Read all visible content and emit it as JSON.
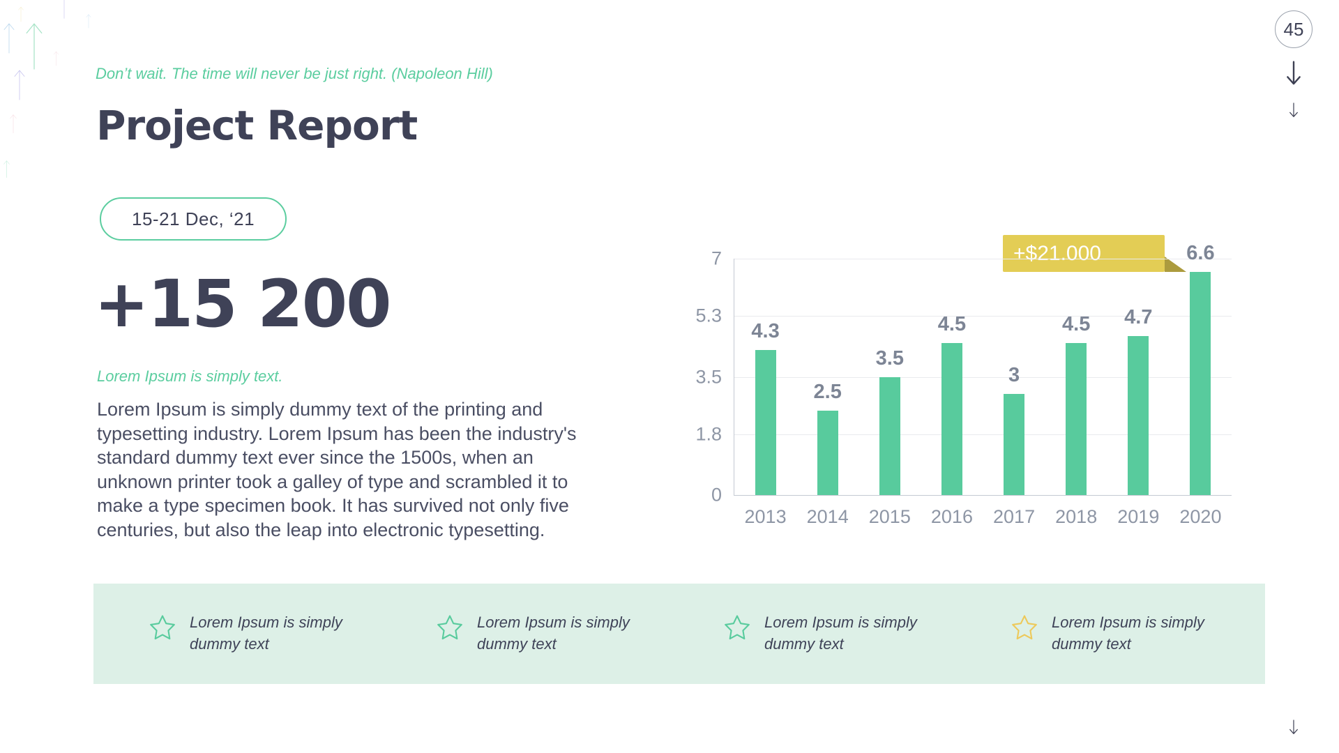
{
  "page": {
    "quote": "Don’t wait. The time will never be just right. (Napoleon Hill)",
    "title": "Project Report",
    "date_badge": "15-21 Dec, ‘21",
    "metric": "+15 200",
    "subtitle": "Lorem Ipsum is simply text.",
    "paragraph": "Lorem Ipsum is simply dummy text of the printing and typesetting industry. Lorem Ipsum has been the industry's standard dummy text ever since the 1500s, when an unknown printer took a galley of type and scrambled it to make a type specimen book. It has survived not only five centuries, but also the leap into electronic typesetting.",
    "page_number": "45"
  },
  "chart_data": {
    "type": "bar",
    "categories": [
      "2013",
      "2014",
      "2015",
      "2016",
      "2017",
      "2018",
      "2019",
      "2020"
    ],
    "values": [
      4.3,
      2.5,
      3.5,
      4.5,
      3,
      4.5,
      4.7,
      6.6
    ],
    "title": "",
    "xlabel": "",
    "ylabel": "",
    "ylim": [
      0,
      7
    ],
    "y_ticks": [
      {
        "value": 0,
        "label": "0"
      },
      {
        "value": 1.8,
        "label": "1.8"
      },
      {
        "value": 3.5,
        "label": "3.5"
      },
      {
        "value": 5.3,
        "label": "5.3"
      },
      {
        "value": 7,
        "label": "7"
      }
    ],
    "grid": true,
    "legend": false,
    "bar_color": "#58cb9d",
    "tooltip": {
      "label": "+$21.000",
      "target_category": "2020",
      "color": "#e3cd55",
      "pointer_color": "#ac9b3e"
    }
  },
  "features": {
    "items": [
      {
        "text": "Lorem Ipsum is simply dummy text",
        "icon": "star-outline-icon",
        "star_color": "#58cb9d"
      },
      {
        "text": "Lorem Ipsum is simply dummy text",
        "icon": "star-outline-icon",
        "star_color": "#58cb9d"
      },
      {
        "text": "Lorem Ipsum is simply dummy text",
        "icon": "star-outline-icon",
        "star_color": "#58cb9d"
      },
      {
        "text": "Lorem Ipsum is simply dummy text",
        "icon": "star-outline-icon",
        "star_color": "#edc95a"
      }
    ],
    "background": "#ddf0e7"
  },
  "colors": {
    "accent_green": "#58cb9d",
    "navy": "#3f4257",
    "body_text": "#4a4e63",
    "chart_text": "#8e96a5",
    "tooltip_yellow": "#e3cd55",
    "tooltip_pointer": "#ac9b3e",
    "band_background": "#ddf0e7",
    "yellow_star": "#edc95a"
  }
}
